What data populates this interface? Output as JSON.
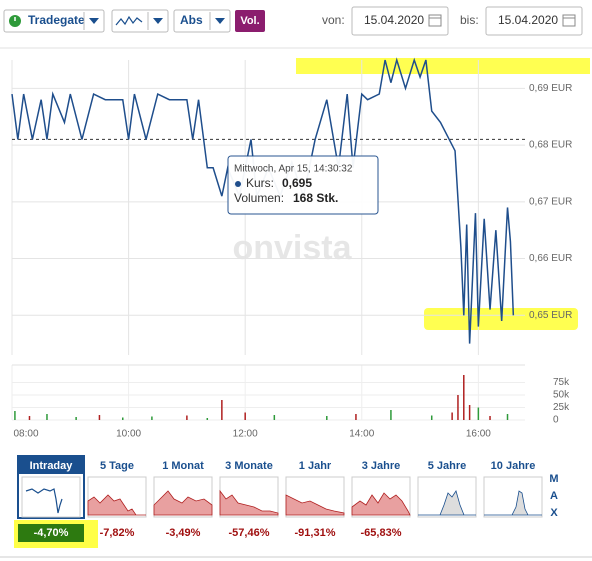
{
  "toolbar": {
    "exchange": "Tradegate",
    "mode": "Abs",
    "volume_toggle": "Vol.",
    "from_label": "von:",
    "from_date": "15.04.2020",
    "to_label": "bis:",
    "to_date": "15.04.2020"
  },
  "watermark": "onvista",
  "tooltip": {
    "date": "Mittwoch, Apr 15, 14:30:32",
    "price_label": "Kurs:",
    "price": "0,695",
    "volume_label": "Volumen:",
    "volume": "168 Stk."
  },
  "chart_data": [
    {
      "type": "line",
      "color": "#1f4e8c",
      "grid": true,
      "reference_line": 0.681,
      "x": [
        8.0,
        8.1,
        8.2,
        8.35,
        8.5,
        8.6,
        8.7,
        8.9,
        9.0,
        9.2,
        9.4,
        9.6,
        9.9,
        10.0,
        10.1,
        10.3,
        10.5,
        10.7,
        11.0,
        11.1,
        11.2,
        11.35,
        11.45,
        11.6,
        11.7,
        11.9,
        12.0,
        12.1,
        12.2,
        12.4,
        12.6,
        12.8,
        13.0,
        13.2,
        13.4,
        13.6,
        13.75,
        13.85,
        14.0,
        14.1,
        14.3,
        14.4,
        14.5,
        14.6,
        14.75,
        14.9,
        15.0,
        15.1,
        15.2,
        15.35,
        15.5,
        15.6,
        15.7,
        15.75,
        15.8,
        15.85,
        15.95,
        16.0,
        16.1,
        16.2,
        16.3,
        16.4,
        16.5,
        16.55,
        16.6
      ],
      "values": [
        0.689,
        0.681,
        0.689,
        0.681,
        0.688,
        0.681,
        0.689,
        0.684,
        0.689,
        0.681,
        0.689,
        0.688,
        0.688,
        0.681,
        0.689,
        0.681,
        0.689,
        0.688,
        0.688,
        0.681,
        0.688,
        0.676,
        0.676,
        0.671,
        0.676,
        0.671,
        0.676,
        0.681,
        0.671,
        0.676,
        0.671,
        0.677,
        0.671,
        0.681,
        0.688,
        0.676,
        0.689,
        0.676,
        0.689,
        0.688,
        0.689,
        0.695,
        0.691,
        0.695,
        0.69,
        0.695,
        0.692,
        0.695,
        0.686,
        0.684,
        0.681,
        0.679,
        0.662,
        0.65,
        0.666,
        0.645,
        0.668,
        0.648,
        0.667,
        0.651,
        0.665,
        0.649,
        0.669,
        0.663,
        0.65
      ],
      "xlim": [
        8,
        16.8
      ],
      "ylim": [
        0.643,
        0.695
      ],
      "yticks": [
        {
          "value": 0.69,
          "label": "0,69 EUR"
        },
        {
          "value": 0.68,
          "label": "0,68 EUR"
        },
        {
          "value": 0.67,
          "label": "0,67 EUR"
        },
        {
          "value": 0.66,
          "label": "0,66 EUR"
        },
        {
          "value": 0.65,
          "label": "0,65 EUR"
        }
      ]
    },
    {
      "type": "bar",
      "x": [
        8.05,
        8.3,
        8.6,
        9.1,
        9.5,
        9.9,
        10.4,
        11.0,
        11.35,
        11.6,
        12.0,
        12.5,
        13.4,
        13.9,
        14.5,
        15.2,
        15.55,
        15.65,
        15.75,
        15.85,
        16.0,
        16.2,
        16.5
      ],
      "values": [
        18000,
        8000,
        12000,
        6000,
        10000,
        5000,
        7000,
        9000,
        4000,
        40000,
        15000,
        10000,
        8000,
        12000,
        20000,
        9000,
        15000,
        50000,
        90000,
        30000,
        25000,
        8000,
        12000
      ],
      "colors": [
        "#2e9a3a",
        "#b02020",
        "#2e9a3a",
        "#2e9a3a",
        "#b02020",
        "#2e9a3a",
        "#2e9a3a",
        "#b02020",
        "#2e9a3a",
        "#b02020",
        "#b02020",
        "#2e9a3a",
        "#2e9a3a",
        "#b02020",
        "#2e9a3a",
        "#2e9a3a",
        "#b02020",
        "#b02020",
        "#b02020",
        "#b02020",
        "#2e9a3a",
        "#b02020",
        "#2e9a3a"
      ],
      "xlim": [
        8,
        16.8
      ],
      "ylim": [
        0,
        100000
      ],
      "yticks": [
        0,
        {
          "value": 25000,
          "label": "25k"
        },
        {
          "value": 50000,
          "label": "50k"
        },
        {
          "value": 75000,
          "label": "75k"
        }
      ],
      "xticks": [
        {
          "value": 8,
          "label": "08:00"
        },
        {
          "value": 10,
          "label": "10:00"
        },
        {
          "value": 12,
          "label": "12:00"
        },
        {
          "value": 14,
          "label": "14:00"
        },
        {
          "value": 16,
          "label": "16:00"
        }
      ]
    }
  ],
  "tabs": [
    {
      "label": "Intraday",
      "change": "-4,70%"
    },
    {
      "label": "5 Tage",
      "change": "-7,82%"
    },
    {
      "label": "1 Monat",
      "change": "-3,49%"
    },
    {
      "label": "3 Monate",
      "change": "-57,46%"
    },
    {
      "label": "1 Jahr",
      "change": "-91,31%"
    },
    {
      "label": "3 Jahre",
      "change": "-65,83%"
    },
    {
      "label": "5 Jahre"
    },
    {
      "label": "10 Jahre"
    }
  ],
  "max_letters": [
    "M",
    "A",
    "X"
  ]
}
